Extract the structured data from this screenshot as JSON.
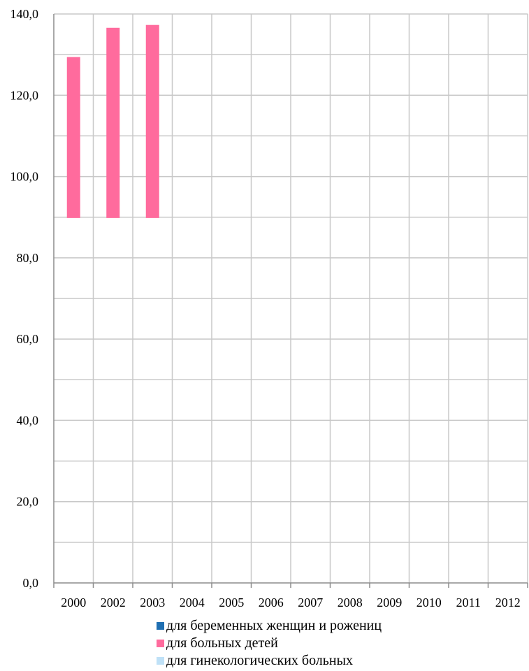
{
  "chart_data": {
    "type": "bar",
    "title": "",
    "xlabel": "",
    "ylabel": "",
    "categories": [
      "2000",
      "2002",
      "2003",
      "2004",
      "2005",
      "2006",
      "2007",
      "2008",
      "2009",
      "2010",
      "2011",
      "2012"
    ],
    "ylim": [
      0,
      140
    ],
    "yticks": [
      "0,0",
      "20,0",
      "40,0",
      "60,0",
      "80,0",
      "100,0",
      "120,0",
      "140,0"
    ],
    "grid": true,
    "legend_position": "bottom",
    "series": [
      {
        "name": "для беременных женщин и рожениц",
        "color": "#1f6fb2",
        "values": [
          null,
          null,
          null,
          null,
          null,
          null,
          null,
          null,
          null,
          null,
          null,
          null
        ]
      },
      {
        "name": "для больных детей",
        "color": "#ff6b9d",
        "values": [
          [
            89.8,
            129.4
          ],
          [
            89.8,
            136.6
          ],
          [
            89.8,
            137.3
          ],
          null,
          null,
          null,
          null,
          null,
          null,
          null,
          null,
          null
        ]
      },
      {
        "name": "для гинекологических больных",
        "color": "#bfe1f7",
        "values": [
          null,
          null,
          null,
          null,
          null,
          null,
          null,
          null,
          null,
          null,
          null,
          null
        ]
      }
    ]
  }
}
